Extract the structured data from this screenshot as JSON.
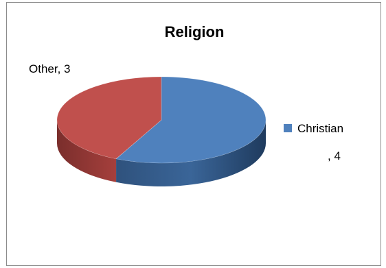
{
  "chart_data": {
    "type": "pie",
    "title": "Religion",
    "categories": [
      "Christian",
      "Other"
    ],
    "values": [
      4,
      3
    ],
    "colors": {
      "Christian": "#4f81bd",
      "Other": "#c0504d"
    },
    "data_labels": [
      "Christian, 4",
      "Other, 3"
    ],
    "legend": {
      "position": "right",
      "entries": [
        "Christian",
        ", 4"
      ]
    },
    "style": "3d"
  }
}
